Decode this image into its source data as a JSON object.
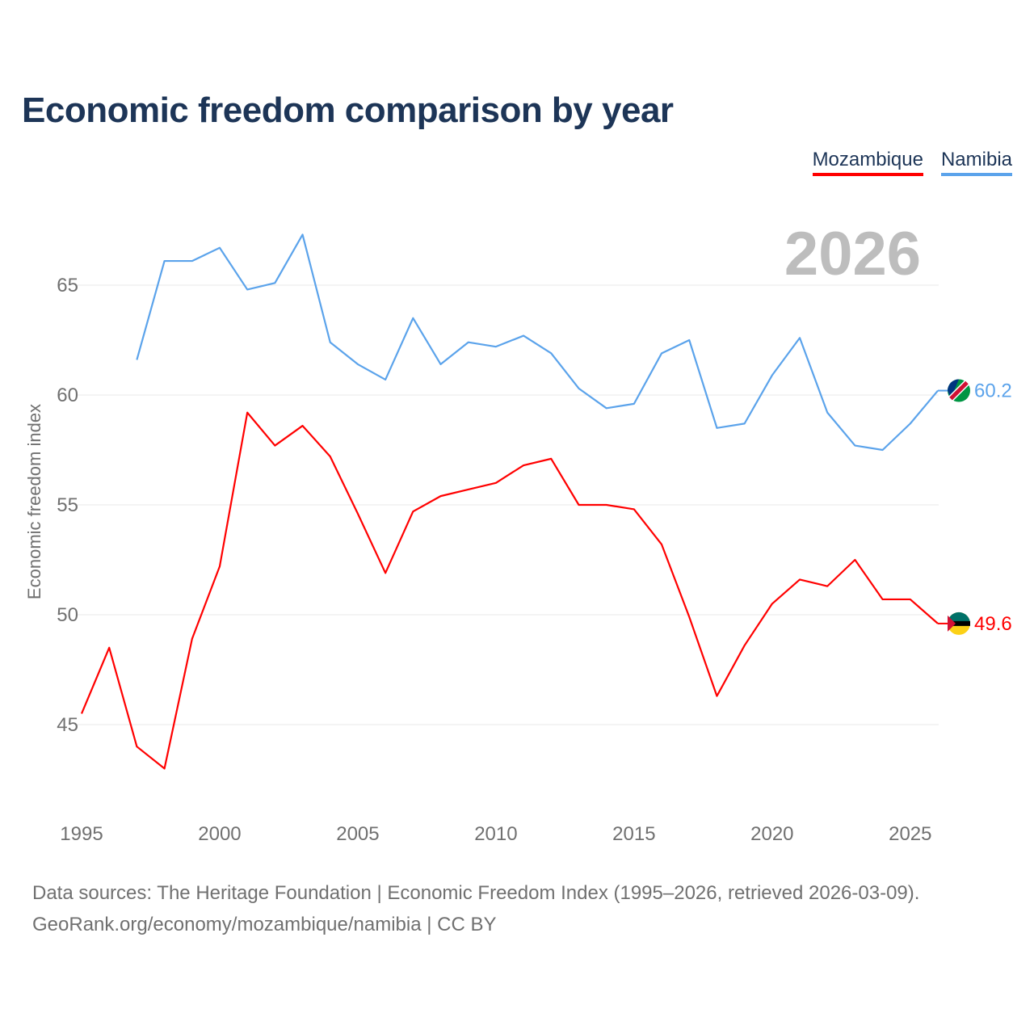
{
  "chart_data": {
    "type": "line",
    "title": "Economic freedom comparison by year",
    "xlabel": "",
    "ylabel": "Economic freedom index",
    "current_year_label": "2026",
    "xlim": [
      1995,
      2026
    ],
    "ylim": [
      41.5,
      69
    ],
    "x_ticks": [
      "1995",
      "2000",
      "2005",
      "2010",
      "2015",
      "2020",
      "2025"
    ],
    "y_ticks": [
      "45",
      "50",
      "55",
      "60",
      "65"
    ],
    "grid": true,
    "legend_position": "top-right",
    "series": [
      {
        "name": "Mozambique",
        "color": "#ff0000",
        "end_label": "49.6",
        "x": [
          1995,
          1996,
          1997,
          1998,
          1999,
          2000,
          2001,
          2002,
          2003,
          2004,
          2005,
          2006,
          2007,
          2008,
          2009,
          2010,
          2011,
          2012,
          2013,
          2014,
          2015,
          2016,
          2017,
          2018,
          2019,
          2020,
          2021,
          2022,
          2023,
          2024,
          2025,
          2026
        ],
        "values": [
          45.5,
          48.5,
          44.0,
          43.0,
          48.9,
          52.2,
          59.2,
          57.7,
          58.6,
          57.2,
          54.6,
          51.9,
          54.7,
          55.4,
          55.7,
          56.0,
          56.8,
          57.1,
          55.0,
          55.0,
          54.8,
          53.2,
          49.9,
          46.3,
          48.6,
          50.5,
          51.6,
          51.3,
          52.5,
          50.7,
          50.7,
          49.6
        ]
      },
      {
        "name": "Namibia",
        "color": "#5ba3eb",
        "end_label": "60.2",
        "x": [
          1997,
          1998,
          1999,
          2000,
          2001,
          2002,
          2003,
          2004,
          2005,
          2006,
          2007,
          2008,
          2009,
          2010,
          2011,
          2012,
          2013,
          2014,
          2015,
          2016,
          2017,
          2018,
          2019,
          2020,
          2021,
          2022,
          2023,
          2024,
          2025,
          2026
        ],
        "values": [
          61.6,
          66.1,
          66.1,
          66.7,
          64.8,
          65.1,
          67.3,
          62.4,
          61.4,
          60.7,
          63.5,
          61.4,
          62.4,
          62.2,
          62.7,
          61.9,
          60.3,
          59.4,
          59.6,
          61.9,
          62.5,
          58.5,
          58.7,
          60.9,
          62.6,
          59.2,
          57.7,
          57.5,
          58.7,
          60.2
        ]
      }
    ]
  },
  "footer": {
    "line1": "Data sources: The Heritage Foundation | Economic Freedom Index (1995–2026, retrieved 2026-03-09).",
    "line2": "GeoRank.org/economy/mozambique/namibia | CC BY"
  }
}
